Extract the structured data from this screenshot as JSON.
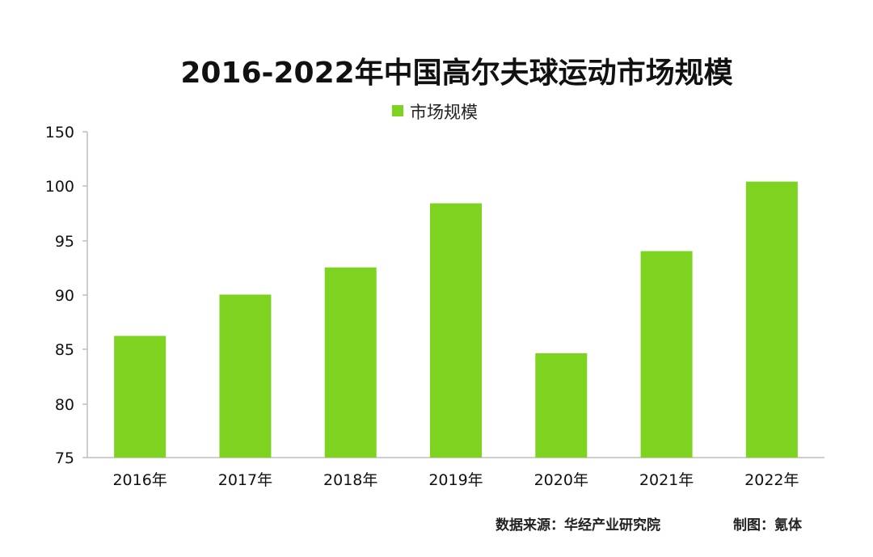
{
  "chart_data": {
    "type": "bar",
    "title": "2016-2022年中国高尔夫球运动市场规模",
    "legend": {
      "placement": "top-center"
    },
    "categories": [
      "2016年",
      "2017年",
      "2018年",
      "2019年",
      "2020年",
      "2021年",
      "2022年"
    ],
    "series": [
      {
        "name": "市场规模",
        "color": "#7ed321",
        "values": [
          86.2,
          90.0,
          92.5,
          98.4,
          84.6,
          94.0,
          100.4
        ]
      }
    ],
    "ylim": [
      75,
      150
    ],
    "yticks": [
      "150",
      "100",
      "95",
      "90",
      "85",
      "80",
      "75"
    ],
    "grid": false
  },
  "footer": {
    "source": "数据来源：华经产业研究院",
    "credit": "制图：氪体"
  }
}
